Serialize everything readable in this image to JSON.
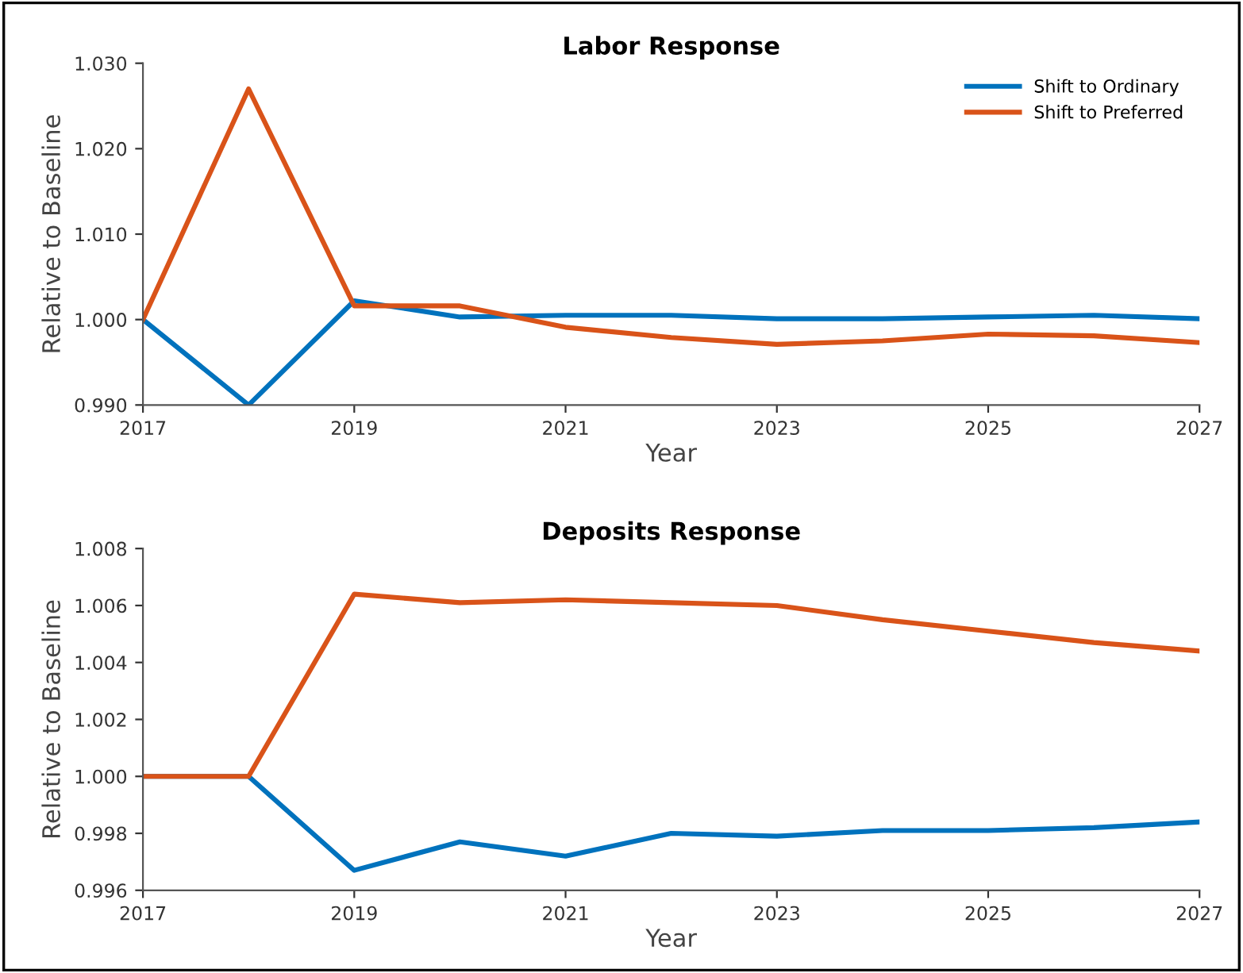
{
  "chart_data": [
    {
      "type": "line",
      "title": "Labor Response",
      "xlabel": "Year",
      "ylabel": "Relative to Baseline",
      "x": [
        2017,
        2018,
        2019,
        2020,
        2021,
        2022,
        2023,
        2024,
        2025,
        2026,
        2027
      ],
      "series": [
        {
          "name": "Shift to Ordinary",
          "color": "#0072bd",
          "values": [
            1.0,
            0.99,
            1.0022,
            1.0003,
            1.0005,
            1.0005,
            1.0001,
            1.0001,
            1.0003,
            1.0005,
            1.0001
          ]
        },
        {
          "name": "Shift to Preferred",
          "color": "#d95319",
          "values": [
            1.0,
            1.027,
            1.0016,
            1.0016,
            0.9991,
            0.9979,
            0.9971,
            0.9975,
            0.9983,
            0.9981,
            0.9973
          ]
        }
      ],
      "xlim": [
        2017,
        2027
      ],
      "xticks": [
        2017,
        2019,
        2021,
        2023,
        2025,
        2027
      ],
      "ylim": [
        0.99,
        1.03
      ],
      "yticks": [
        {
          "value": 0.99,
          "label": "0.990"
        },
        {
          "value": 1.0,
          "label": "1.000"
        },
        {
          "value": 1.01,
          "label": "1.010"
        },
        {
          "value": 1.02,
          "label": "1.020"
        },
        {
          "value": 1.03,
          "label": "1.030"
        }
      ],
      "grid": false,
      "legend": "top right",
      "marker": "none",
      "line_style": "solid"
    },
    {
      "type": "line",
      "title": "Deposits Response",
      "xlabel": "Year",
      "ylabel": "Relative to Baseline",
      "x": [
        2017,
        2018,
        2019,
        2020,
        2021,
        2022,
        2023,
        2024,
        2025,
        2026,
        2027
      ],
      "series": [
        {
          "color": "#0072bd",
          "values": [
            1.0,
            1.0,
            0.9967,
            0.9977,
            0.9972,
            0.998,
            0.9979,
            0.9981,
            0.9981,
            0.9982,
            0.9984
          ]
        },
        {
          "color": "#d95319",
          "values": [
            1.0,
            1.0,
            1.0064,
            1.0061,
            1.0062,
            1.0061,
            1.006,
            1.0055,
            1.0051,
            1.0047,
            1.0044
          ]
        }
      ],
      "xlim": [
        2017,
        2027
      ],
      "xticks": [
        2017,
        2019,
        2021,
        2023,
        2025,
        2027
      ],
      "ylim": [
        0.996,
        1.008
      ],
      "yticks": [
        {
          "value": 0.996,
          "label": "0.996"
        },
        {
          "value": 0.998,
          "label": "0.998"
        },
        {
          "value": 1.0,
          "label": "1.000"
        },
        {
          "value": 1.002,
          "label": "1.002"
        },
        {
          "value": 1.004,
          "label": "1.004"
        },
        {
          "value": 1.006,
          "label": "1.006"
        },
        {
          "value": 1.008,
          "label": "1.008"
        }
      ],
      "grid": false,
      "legend": false,
      "marker": "none",
      "line_style": "solid"
    }
  ]
}
